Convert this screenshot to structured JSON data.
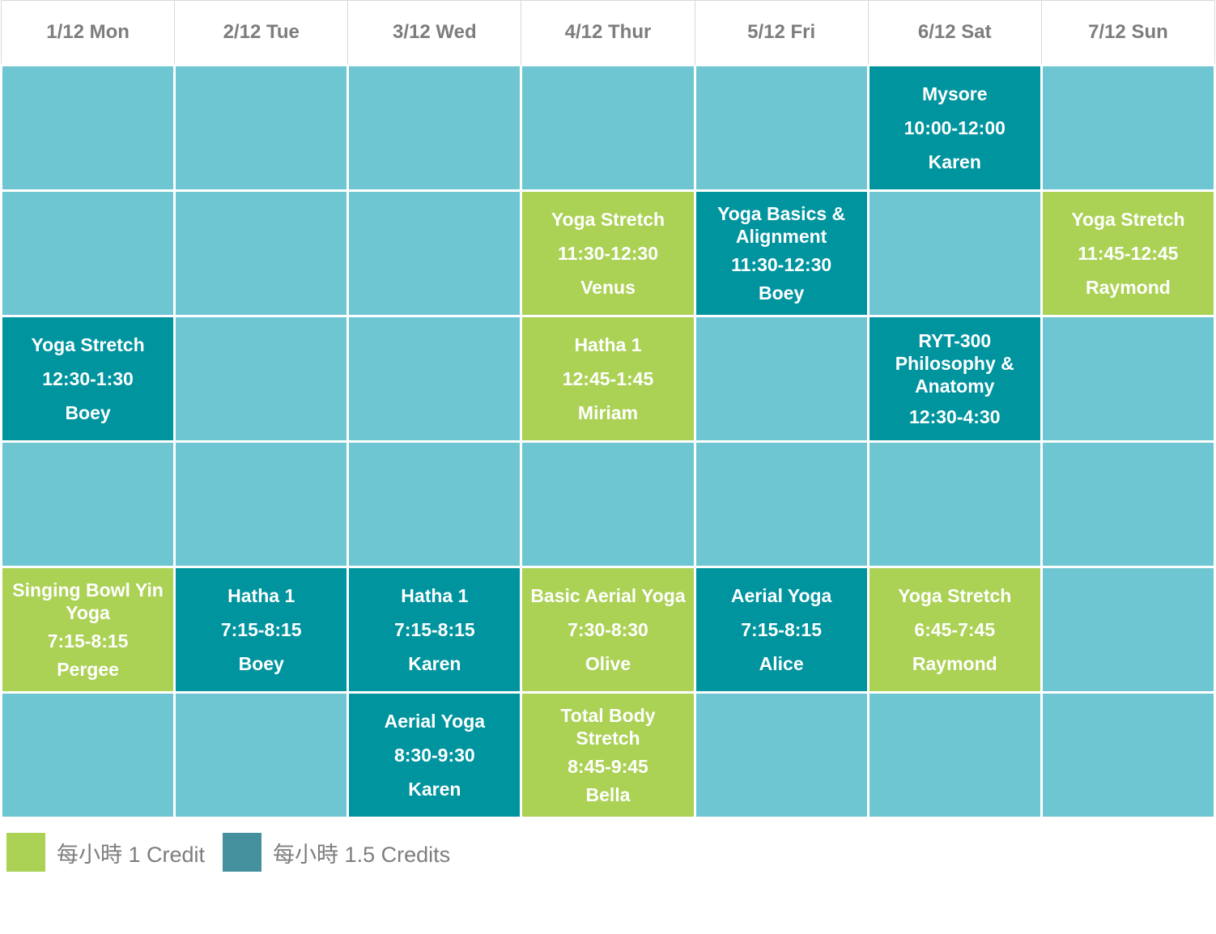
{
  "header": {
    "days": [
      "1/12 Mon",
      "2/12 Tue",
      "3/12 Wed",
      "4/12 Thur",
      "5/12 Fri",
      "6/12 Sat",
      "7/12 Sun"
    ]
  },
  "colors": {
    "empty_cell": "#6ec6d2",
    "credit1_cell": "#abd155",
    "credit15_cell": "#00949f",
    "legend_credit1_swatch": "#abd155",
    "legend_credit15_swatch": "#44909c",
    "header_text": "#7d7d7d",
    "legend_text": "#7d7d7d",
    "cell_text": "#ffffff",
    "grid_line": "#d9d9d9"
  },
  "legend": {
    "items": [
      {
        "label": "每小時 1 Credit",
        "credit": "1"
      },
      {
        "label": "每小時 1.5 Credits",
        "credit": "1.5"
      }
    ]
  },
  "schedule": {
    "rows": [
      {
        "cells": [
          null,
          null,
          null,
          null,
          null,
          {
            "credit": "1.5",
            "name": "Mysore",
            "time": "10:00-12:00",
            "teacher": "Karen"
          },
          null
        ]
      },
      {
        "cells": [
          null,
          null,
          null,
          {
            "credit": "1",
            "name": "Yoga Stretch",
            "time": "11:30-12:30",
            "teacher": "Venus"
          },
          {
            "credit": "1.5",
            "name": "Yoga Basics & Alignment",
            "time": "11:30-12:30",
            "teacher": "Boey"
          },
          null,
          {
            "credit": "1",
            "name": "Yoga Stretch",
            "time": "11:45-12:45",
            "teacher": "Raymond"
          }
        ]
      },
      {
        "cells": [
          {
            "credit": "1.5",
            "name": "Yoga Stretch",
            "time": "12:30-1:30",
            "teacher": "Boey"
          },
          null,
          null,
          {
            "credit": "1",
            "name": "Hatha 1",
            "time": "12:45-1:45",
            "teacher": "Miriam"
          },
          null,
          {
            "credit": "1.5",
            "name": "RYT-300 Philosophy & Anatomy",
            "time": "12:30-4:30"
          },
          null
        ]
      },
      {
        "cells": [
          null,
          null,
          null,
          null,
          null,
          null,
          null
        ]
      },
      {
        "cells": [
          {
            "credit": "1",
            "name": "Singing Bowl Yin Yoga",
            "time": "7:15-8:15",
            "teacher": "Pergee"
          },
          {
            "credit": "1.5",
            "name": "Hatha 1",
            "time": "7:15-8:15",
            "teacher": "Boey"
          },
          {
            "credit": "1.5",
            "name": "Hatha 1",
            "time": "7:15-8:15",
            "teacher": "Karen"
          },
          {
            "credit": "1",
            "name": "Basic Aerial Yoga",
            "time": "7:30-8:30",
            "teacher": "Olive"
          },
          {
            "credit": "1.5",
            "name": "Aerial Yoga",
            "time": "7:15-8:15",
            "teacher": "Alice"
          },
          {
            "credit": "1",
            "name": "Yoga Stretch",
            "time": "6:45-7:45",
            "teacher": "Raymond"
          },
          null
        ]
      },
      {
        "cells": [
          null,
          null,
          {
            "credit": "1.5",
            "name": "Aerial Yoga",
            "time": "8:30-9:30",
            "teacher": "Karen"
          },
          {
            "credit": "1",
            "name": "Total Body Stretch",
            "time": "8:45-9:45",
            "teacher": "Bella"
          },
          null,
          null,
          null
        ]
      }
    ]
  }
}
